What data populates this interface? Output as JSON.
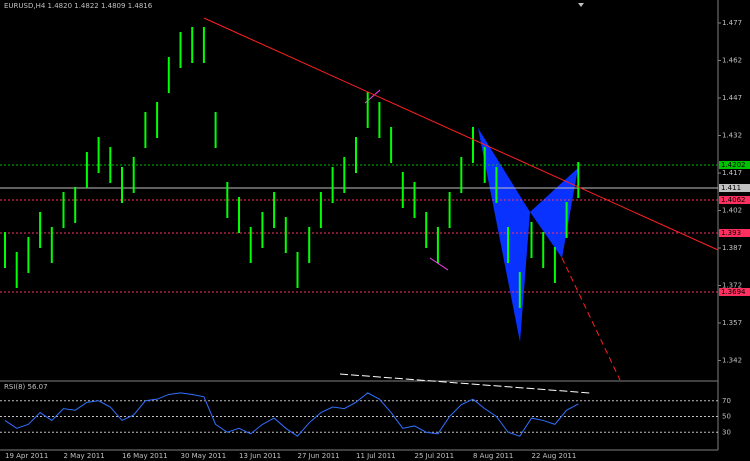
{
  "chart_data": [
    {
      "type": "range",
      "title": "EURUSD,H4 1.4820 1.4822 1.4809 1.4816",
      "color": "#00ff00",
      "categories": [
        "19 Apr 2011",
        null,
        null,
        null,
        null,
        "2 May 2011",
        null,
        null,
        null,
        null,
        "16 May 2011",
        null,
        null,
        null,
        null,
        "30 May 2011",
        null,
        null,
        null,
        null,
        "13 Jun 2011",
        null,
        null,
        null,
        null,
        "27 Jun 2011",
        null,
        null,
        null,
        null,
        "11 Jul 2011",
        null,
        null,
        null,
        null,
        "25 Jul 2011",
        null,
        null,
        null,
        null,
        "8 Aug 2011",
        null,
        null,
        null,
        null,
        "22 Aug 2011",
        null,
        null,
        null,
        null
      ],
      "series": [
        {
          "name": "High",
          "values": [
            1.3934,
            1.3854,
            1.3914,
            1.4014,
            1.3954,
            1.4094,
            1.4114,
            1.4254,
            1.4314,
            1.4274,
            1.4194,
            1.4234,
            1.4414,
            1.4454,
            1.4634,
            1.4734,
            1.4754,
            1.4754,
            1.4414,
            1.4134,
            1.4074,
            1.3954,
            1.4014,
            1.4094,
            1.3994,
            1.3854,
            1.3954,
            1.4094,
            1.4194,
            1.4234,
            1.4314,
            1.4494,
            1.4454,
            1.4354,
            1.4174,
            1.4134,
            1.4014,
            1.3954,
            1.4094,
            1.4234,
            1.4354,
            1.4274,
            1.4194,
            1.3954,
            1.3774,
            1.3974,
            1.3934,
            1.3874,
            1.4054,
            1.4214
          ]
        },
        {
          "name": "Low",
          "values": [
            1.379,
            1.371,
            1.377,
            1.387,
            1.381,
            1.395,
            1.397,
            1.411,
            1.417,
            1.413,
            1.405,
            1.409,
            1.427,
            1.431,
            1.449,
            1.459,
            1.461,
            1.461,
            1.427,
            1.399,
            1.393,
            1.381,
            1.387,
            1.395,
            1.385,
            1.371,
            1.381,
            1.395,
            1.405,
            1.409,
            1.417,
            1.435,
            1.431,
            1.421,
            1.403,
            1.399,
            1.387,
            1.381,
            1.395,
            1.409,
            1.421,
            1.413,
            1.405,
            1.381,
            1.363,
            1.383,
            1.379,
            1.373,
            1.391,
            1.407
          ]
        }
      ],
      "ylim": [
        1.3342,
        1.483
      ],
      "yticks": [
        1.477,
        1.462,
        1.447,
        1.432,
        1.417,
        1.402,
        1.387,
        1.372,
        1.357,
        1.342
      ],
      "levels": [
        {
          "value": 1.4202,
          "color": "#00c000"
        },
        {
          "value": 1.411,
          "color": "#c0c0c0"
        },
        {
          "value": 1.4062,
          "color": "#ff3060"
        },
        {
          "value": 1.393,
          "color": "#ff3060"
        },
        {
          "value": 1.3694,
          "color": "#ff3060"
        }
      ],
      "trendline": {
        "color": "#ff2020",
        "values": [
          1.479,
          1.3862
        ]
      }
    },
    {
      "type": "line",
      "title": "RSI(8) 56.07",
      "color": "#3070ff",
      "values": [
        45,
        35,
        40,
        55,
        45,
        60,
        58,
        68,
        70,
        62,
        45,
        52,
        70,
        72,
        78,
        80,
        78,
        75,
        40,
        30,
        35,
        28,
        40,
        48,
        35,
        25,
        42,
        55,
        62,
        60,
        68,
        80,
        72,
        55,
        35,
        38,
        30,
        28,
        50,
        65,
        72,
        60,
        50,
        30,
        25,
        48,
        45,
        40,
        58,
        66
      ],
      "ylim": [
        10,
        90
      ],
      "yticks": [
        30,
        50,
        70
      ]
    }
  ]
}
